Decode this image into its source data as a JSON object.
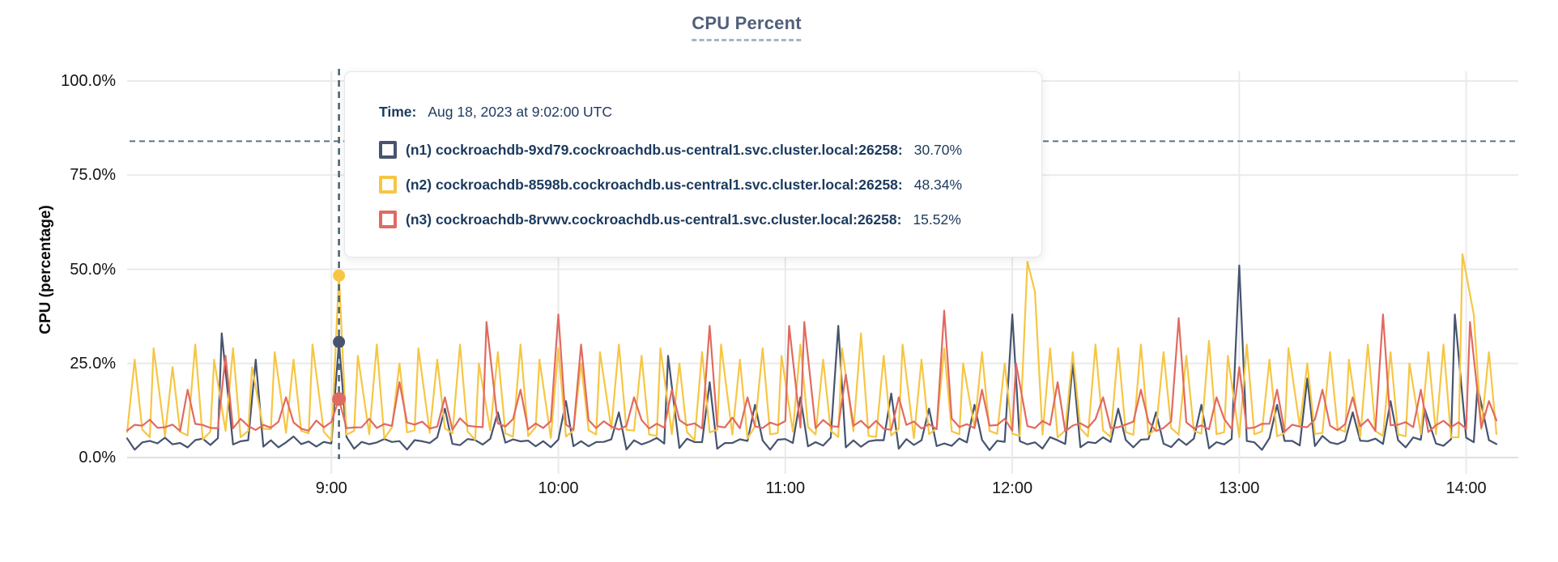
{
  "title": {
    "text": "CPU Percent"
  },
  "y_axis": {
    "title": "CPU (percentage)",
    "ticks": [
      {
        "label": "100.0%",
        "percent": 100
      },
      {
        "label": "75.0%",
        "percent": 75
      },
      {
        "label": "50.0%",
        "percent": 50
      },
      {
        "label": "25.0%",
        "percent": 25
      },
      {
        "label": "0.0%",
        "percent": 0
      }
    ]
  },
  "x_axis": {
    "ticks": [
      {
        "label": "9:00",
        "minute": 60
      },
      {
        "label": "10:00",
        "minute": 120
      },
      {
        "label": "11:00",
        "minute": 180
      },
      {
        "label": "12:00",
        "minute": 240
      },
      {
        "label": "13:00",
        "minute": 300
      },
      {
        "label": "14:00",
        "minute": 360
      }
    ]
  },
  "tooltip": {
    "time_label": "Time:",
    "time_value": "Aug 18, 2023 at 9:02:00 UTC",
    "rows": [
      {
        "color": "#46546F",
        "label": "(n1) cockroachdb-9xd79.cockroachdb.us-central1.svc.cluster.local:26258:",
        "value": "30.70%"
      },
      {
        "color": "#F6C644",
        "label": "(n2) cockroachdb-8598b.cockroachdb.us-central1.svc.cluster.local:26258:",
        "value": "48.34%"
      },
      {
        "color": "#E16A60",
        "label": "(n3) cockroachdb-8rvwv.cockroachdb.us-central1.svc.cluster.local:26258:",
        "value": "15.52%"
      }
    ]
  },
  "colors": {
    "grid": "#EAEAEA",
    "axis_line": "#E0E0E0",
    "reference_dash": "#5D7384",
    "crosshair": "#46626F",
    "title": "#50607B",
    "tooltip_text": "#1C3A5E"
  },
  "chart_data": {
    "type": "line",
    "title": "CPU Percent",
    "xlabel": "",
    "ylabel": "CPU (percentage)",
    "x_unit": "minutes_after_8:00_UTC",
    "x_domain": [
      6,
      368
    ],
    "ylim": [
      0,
      100
    ],
    "x_tick_labels": [
      "9:00",
      "10:00",
      "11:00",
      "12:00",
      "13:00",
      "14:00"
    ],
    "y_tick_labels": [
      "0.0%",
      "25.0%",
      "50.0%",
      "75.0%",
      "100.0%"
    ],
    "grid": true,
    "reference_line_percent": 84,
    "hover_minute": 62,
    "hover_time": "Aug 18, 2023 at 9:02:00 UTC",
    "series": [
      {
        "id": "n1",
        "name": "cockroachdb-9xd79.cockroachdb.us-central1.svc.cluster.local:26258",
        "color": "#46546F",
        "baseline_percent": 4,
        "noise_phase": 0,
        "hover_value_percent": 30.7,
        "peaks_minute_percent": [
          [
            31,
            33
          ],
          [
            40,
            26
          ],
          [
            62,
            30.7
          ],
          [
            90,
            13
          ],
          [
            104,
            12
          ],
          [
            122,
            15
          ],
          [
            136,
            12
          ],
          [
            149,
            27
          ],
          [
            160,
            20
          ],
          [
            172,
            14
          ],
          [
            184,
            16
          ],
          [
            194,
            35
          ],
          [
            208,
            17
          ],
          [
            218,
            13
          ],
          [
            230,
            14
          ],
          [
            240,
            38
          ],
          [
            256,
            25
          ],
          [
            268,
            13
          ],
          [
            278,
            12
          ],
          [
            290,
            14
          ],
          [
            300,
            51
          ],
          [
            310,
            14
          ],
          [
            318,
            21
          ],
          [
            330,
            12
          ],
          [
            340,
            15
          ],
          [
            349,
            13
          ],
          [
            357,
            38
          ],
          [
            363,
            19
          ]
        ]
      },
      {
        "id": "n2",
        "name": "cockroachdb-8598b.cockroachdb.us-central1.svc.cluster.local:26258",
        "color": "#F6C644",
        "baseline_percent": 6.5,
        "noise_phase": 2,
        "hover_value_percent": 48.34,
        "peaks_minute_percent": [
          [
            8,
            26
          ],
          [
            13,
            29
          ],
          [
            18,
            24
          ],
          [
            24,
            30
          ],
          [
            29,
            26
          ],
          [
            34,
            29
          ],
          [
            39,
            24
          ],
          [
            45,
            28
          ],
          [
            50,
            26
          ],
          [
            55,
            30
          ],
          [
            62,
            48.34
          ],
          [
            67,
            27
          ],
          [
            72,
            30
          ],
          [
            78,
            25
          ],
          [
            83,
            29
          ],
          [
            88,
            26
          ],
          [
            94,
            30
          ],
          [
            99,
            25
          ],
          [
            104,
            28
          ],
          [
            110,
            30
          ],
          [
            115,
            26
          ],
          [
            120,
            29
          ],
          [
            126,
            25
          ],
          [
            131,
            28
          ],
          [
            136,
            30
          ],
          [
            142,
            27
          ],
          [
            147,
            29
          ],
          [
            152,
            25
          ],
          [
            158,
            28
          ],
          [
            163,
            30
          ],
          [
            168,
            26
          ],
          [
            174,
            29
          ],
          [
            179,
            27
          ],
          [
            184,
            30
          ],
          [
            190,
            26
          ],
          [
            195,
            29
          ],
          [
            200,
            33
          ],
          [
            206,
            27
          ],
          [
            211,
            30
          ],
          [
            216,
            26
          ],
          [
            222,
            29
          ],
          [
            227,
            25
          ],
          [
            232,
            28
          ],
          [
            238,
            25
          ],
          [
            244,
            52
          ],
          [
            246,
            44
          ],
          [
            250,
            29
          ],
          [
            256,
            28
          ],
          [
            262,
            30
          ],
          [
            268,
            29
          ],
          [
            274,
            30
          ],
          [
            280,
            28
          ],
          [
            286,
            27
          ],
          [
            292,
            31
          ],
          [
            297,
            27
          ],
          [
            302,
            30
          ],
          [
            308,
            26
          ],
          [
            313,
            29
          ],
          [
            318,
            25
          ],
          [
            324,
            28
          ],
          [
            329,
            26
          ],
          [
            334,
            30
          ],
          [
            340,
            28
          ],
          [
            345,
            25
          ],
          [
            350,
            28
          ],
          [
            354,
            30
          ],
          [
            359,
            54
          ],
          [
            362,
            38
          ],
          [
            366,
            28
          ],
          [
            370,
            24
          ]
        ]
      },
      {
        "id": "n3",
        "name": "cockroachdb-8rvwv.cockroachdb.us-central1.svc.cluster.local:26258",
        "color": "#E16A60",
        "baseline_percent": 8.5,
        "noise_phase": 4,
        "hover_value_percent": 15.52,
        "peaks_minute_percent": [
          [
            22,
            18
          ],
          [
            32,
            27
          ],
          [
            48,
            16
          ],
          [
            62,
            15.52
          ],
          [
            78,
            20
          ],
          [
            90,
            16
          ],
          [
            101,
            36
          ],
          [
            110,
            18
          ],
          [
            120,
            38
          ],
          [
            126,
            30
          ],
          [
            140,
            16
          ],
          [
            150,
            18
          ],
          [
            160,
            35
          ],
          [
            170,
            16
          ],
          [
            181,
            35
          ],
          [
            185,
            36
          ],
          [
            196,
            22
          ],
          [
            210,
            16
          ],
          [
            222,
            39
          ],
          [
            232,
            18
          ],
          [
            241,
            25
          ],
          [
            252,
            20
          ],
          [
            264,
            16
          ],
          [
            274,
            18
          ],
          [
            284,
            37
          ],
          [
            294,
            16
          ],
          [
            300,
            24
          ],
          [
            310,
            18
          ],
          [
            322,
            18
          ],
          [
            330,
            16
          ],
          [
            338,
            38
          ],
          [
            348,
            18
          ],
          [
            361,
            36
          ],
          [
            366,
            15
          ]
        ]
      }
    ]
  }
}
